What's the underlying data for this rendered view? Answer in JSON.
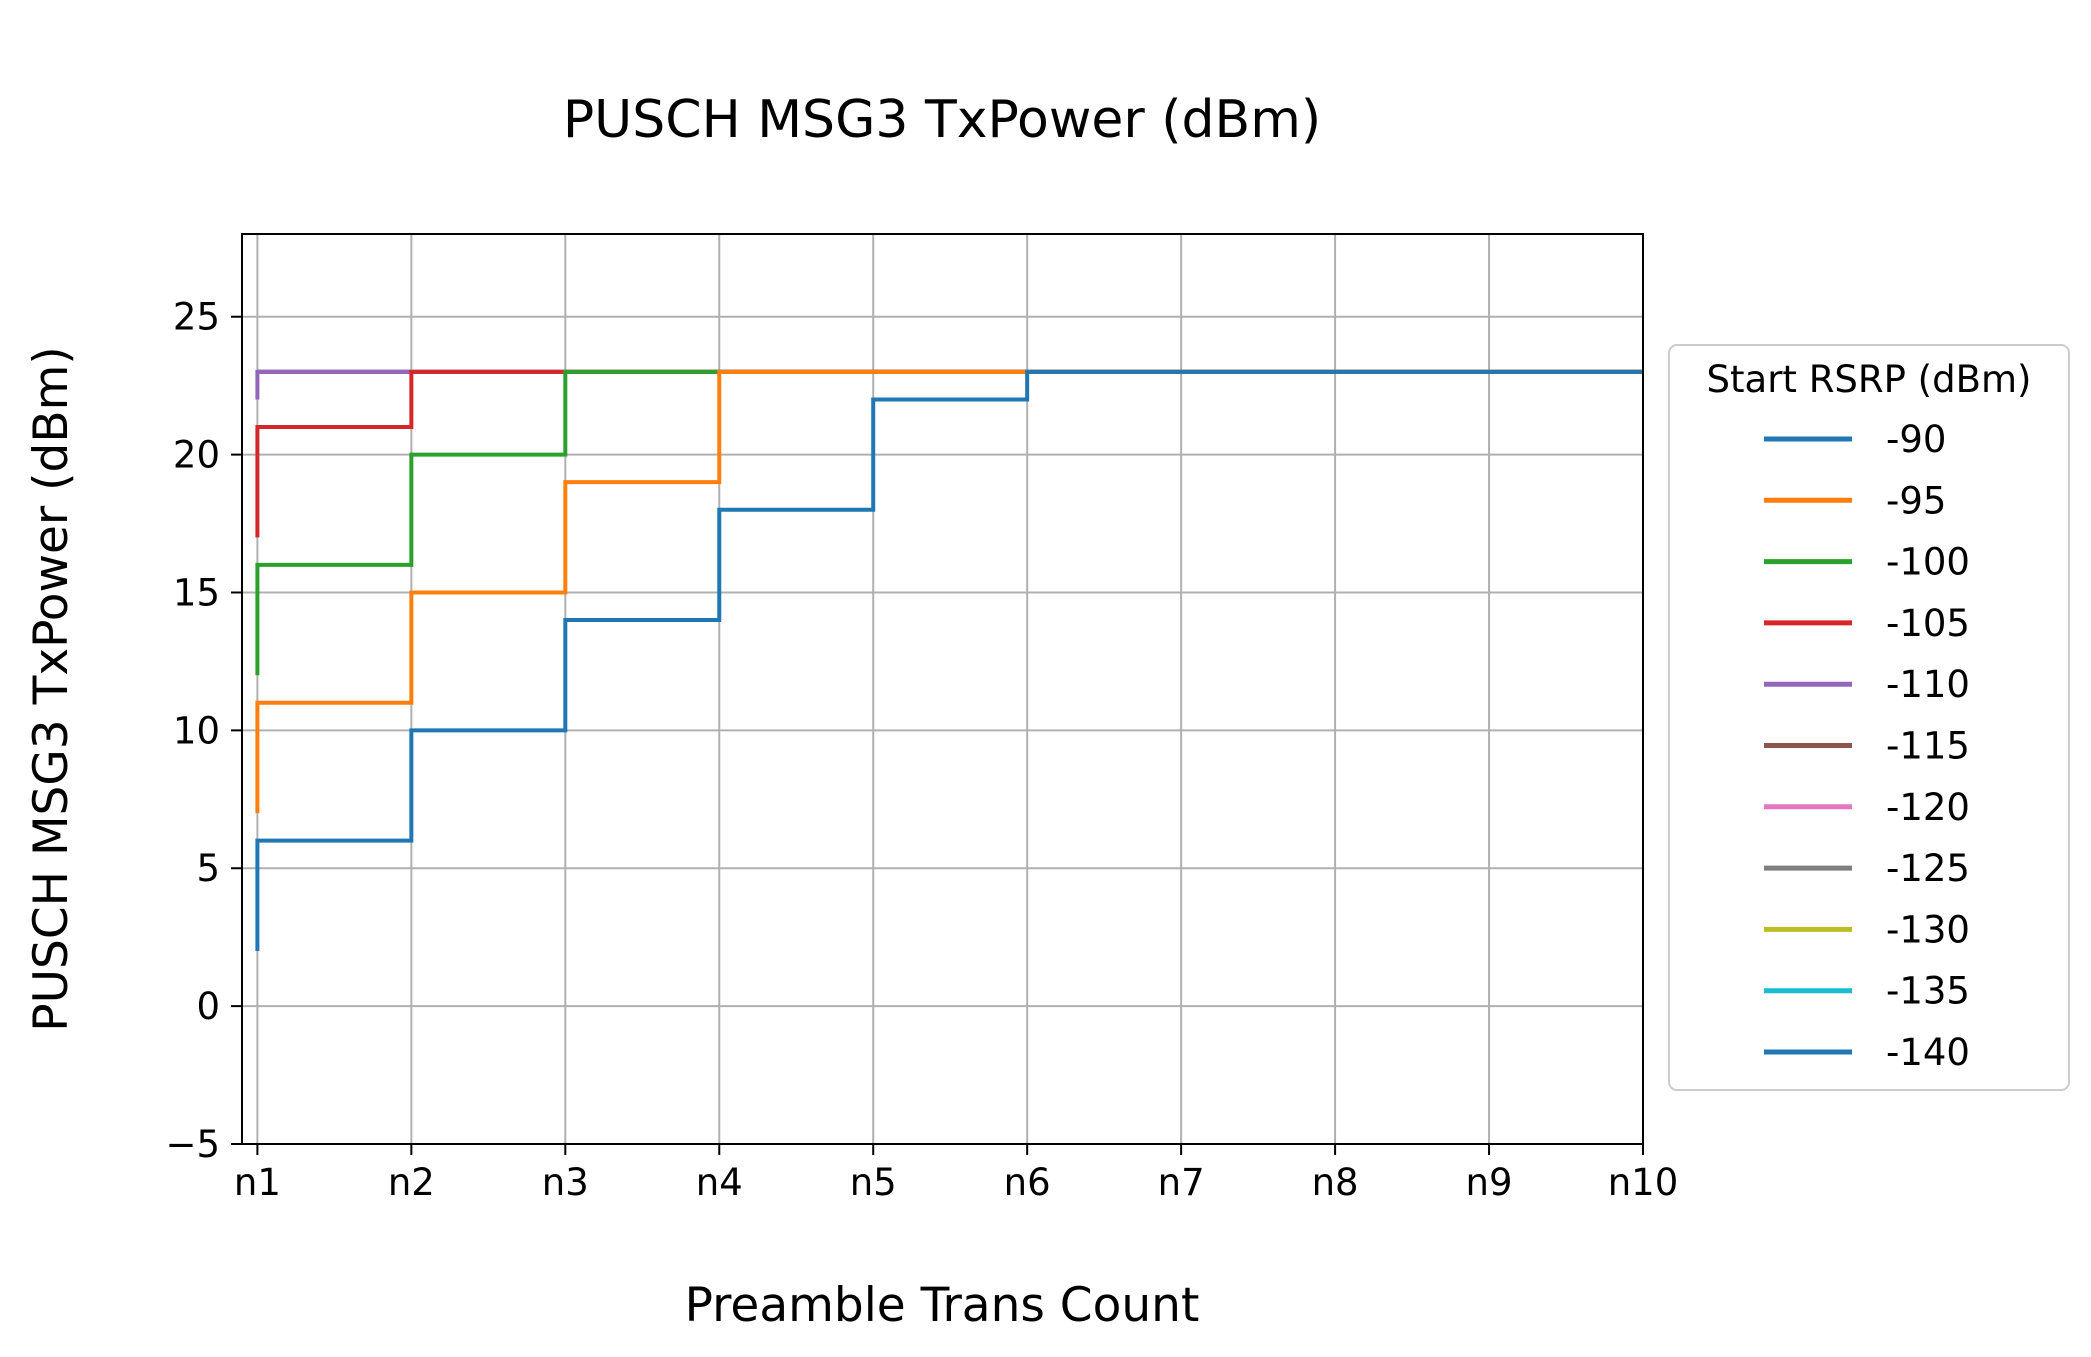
{
  "chart_data": {
    "type": "line",
    "step": "pre",
    "title": "PUSCH MSG3 TxPower (dBm)",
    "xlabel": "Preamble Trans Count",
    "ylabel": "PUSCH MSG3 TxPower (dBm)",
    "categories": [
      "n1",
      "n2",
      "n3",
      "n4",
      "n5",
      "n6",
      "n7",
      "n8",
      "n9",
      "n10"
    ],
    "x": [
      1,
      2,
      3,
      4,
      5,
      6,
      7,
      8,
      9,
      10
    ],
    "yticks": [
      -5,
      0,
      5,
      10,
      15,
      20,
      25
    ],
    "ytick_labels": [
      "−5",
      "0",
      "5",
      "10",
      "15",
      "20",
      "25"
    ],
    "xlim": [
      0.9,
      10
    ],
    "ylim": [
      -5,
      28
    ],
    "grid": true,
    "legend": {
      "title": "Start RSRP (dBm)",
      "placement": "outside-right"
    },
    "series": [
      {
        "name": "-90",
        "color": "#1f77b4",
        "start": 2,
        "values": [
          6,
          10,
          14,
          18,
          22,
          23,
          23,
          23,
          23,
          23
        ]
      },
      {
        "name": "-95",
        "color": "#ff7f0e",
        "start": 7,
        "values": [
          11,
          15,
          19,
          23,
          23,
          23,
          23,
          23,
          23,
          23
        ]
      },
      {
        "name": "-100",
        "color": "#2ca02c",
        "start": 12,
        "values": [
          16,
          20,
          23,
          23,
          23,
          23,
          23,
          23,
          23,
          23
        ]
      },
      {
        "name": "-105",
        "color": "#d62728",
        "start": 17,
        "values": [
          21,
          23,
          23,
          23,
          23,
          23,
          23,
          23,
          23,
          23
        ]
      },
      {
        "name": "-110",
        "color": "#9467bd",
        "start": 22,
        "values": [
          23,
          23,
          23,
          23,
          23,
          23,
          23,
          23,
          23,
          23
        ]
      },
      {
        "name": "-115",
        "color": "#8c564b",
        "start": 23,
        "values": [
          23,
          23,
          23,
          23,
          23,
          23,
          23,
          23,
          23,
          23
        ]
      },
      {
        "name": "-120",
        "color": "#e377c2",
        "start": 23,
        "values": [
          23,
          23,
          23,
          23,
          23,
          23,
          23,
          23,
          23,
          23
        ]
      },
      {
        "name": "-125",
        "color": "#7f7f7f",
        "start": 23,
        "values": [
          23,
          23,
          23,
          23,
          23,
          23,
          23,
          23,
          23,
          23
        ]
      },
      {
        "name": "-130",
        "color": "#bcbd22",
        "start": 23,
        "values": [
          23,
          23,
          23,
          23,
          23,
          23,
          23,
          23,
          23,
          23
        ]
      },
      {
        "name": "-135",
        "color": "#17becf",
        "start": 23,
        "values": [
          23,
          23,
          23,
          23,
          23,
          23,
          23,
          23,
          23,
          23
        ]
      },
      {
        "name": "-140",
        "color": "#1f77b4",
        "start": 23,
        "values": [
          23,
          23,
          23,
          23,
          23,
          23,
          23,
          23,
          23,
          23
        ]
      }
    ]
  }
}
